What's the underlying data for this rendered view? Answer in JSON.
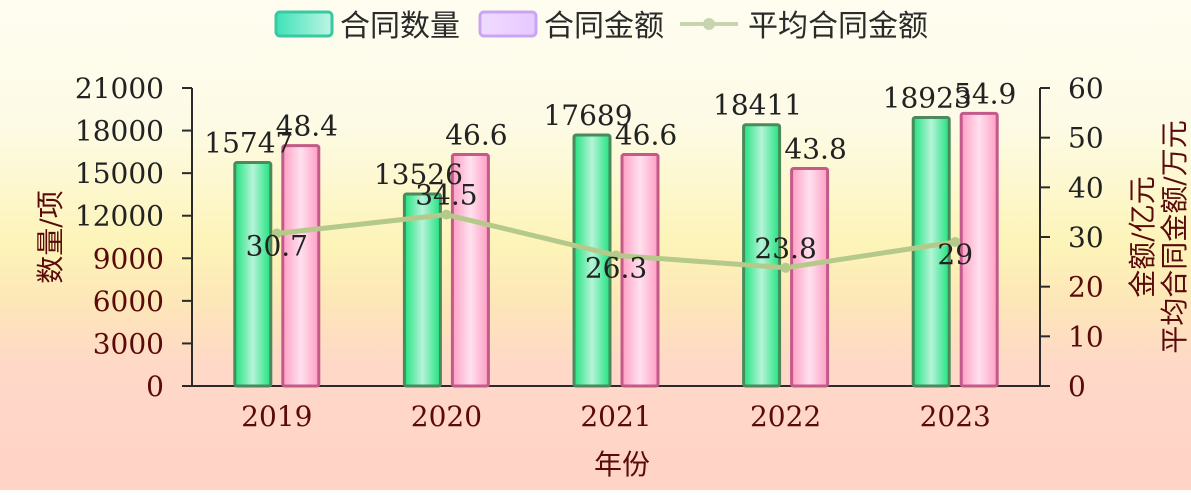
{
  "chart_data": {
    "type": "bar",
    "categories": [
      "2019",
      "2020",
      "2021",
      "2022",
      "2023"
    ],
    "series": [
      {
        "name": "合同数量",
        "type": "bar",
        "axis": "left",
        "values": [
          15747,
          13526,
          17689,
          18411,
          18923
        ],
        "labels": [
          "15747",
          "13526",
          "17689",
          "18411",
          "18923"
        ],
        "color": "#2ee8a6"
      },
      {
        "name": "合同金额",
        "type": "bar",
        "axis": "right",
        "values": [
          48.4,
          46.6,
          46.6,
          43.8,
          54.9
        ],
        "labels": [
          "48.4",
          "46.6",
          "46.6",
          "43.8",
          "54.9"
        ],
        "color": "#ff9ec4"
      },
      {
        "name": "平均合同金额",
        "type": "line",
        "axis": "right",
        "values": [
          30.7,
          34.5,
          26.3,
          23.8,
          29
        ],
        "labels": [
          "30.7",
          "34.5",
          "26.3",
          "23.8",
          "29"
        ],
        "color": "#b5c98a"
      }
    ],
    "xlabel": "年份",
    "ylabel_left": "数量/项",
    "ylabel_right": "金额/亿元",
    "ylabel_right2": "平均合同金额/万元",
    "ylim_left": [
      0,
      21000
    ],
    "ylim_right": [
      0,
      60
    ],
    "left_ticks": [
      "0",
      "3000",
      "6000",
      "9000",
      "12000",
      "15000",
      "18000",
      "21000"
    ],
    "right_ticks": [
      "0",
      "10",
      "20",
      "30",
      "40",
      "50",
      "60"
    ],
    "legend_position": "top-center",
    "grid": false
  }
}
